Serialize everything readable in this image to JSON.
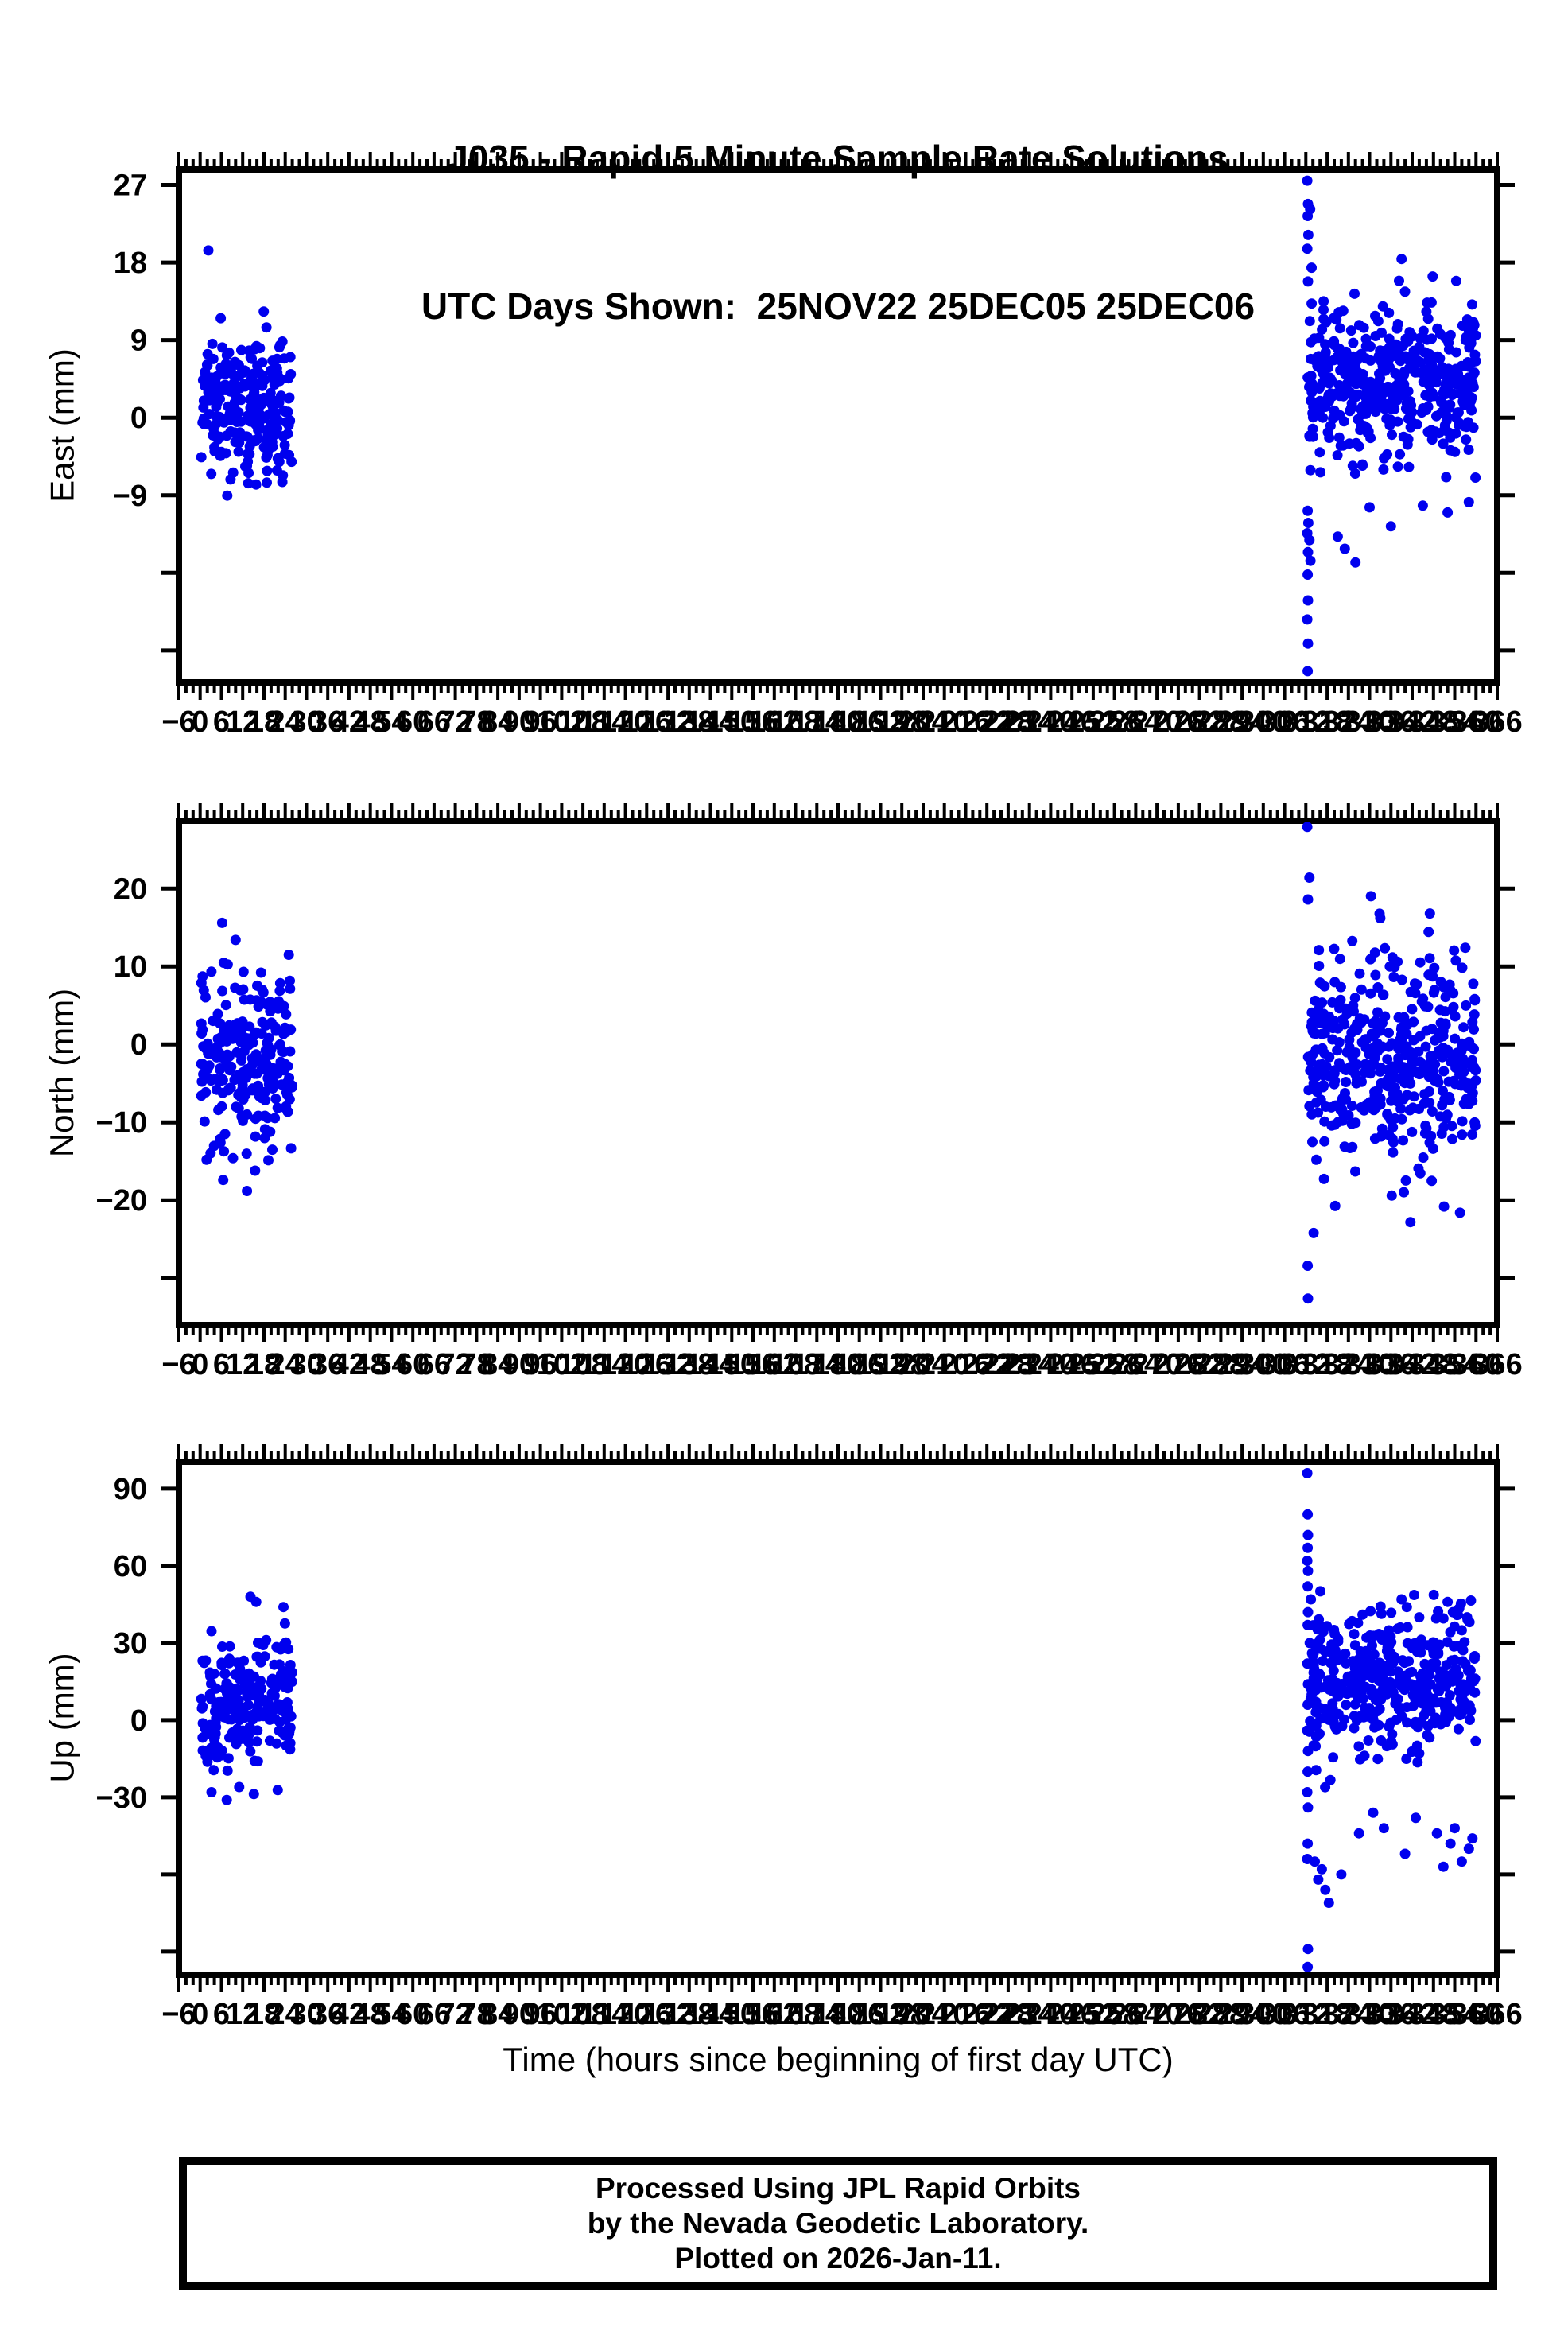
{
  "title": {
    "line1": "J035 - Rapid 5 Minute Sample Rate Solutions",
    "line2": "UTC Days Shown:  25NOV22 25DEC05 25DEC06"
  },
  "x_axis": {
    "title": "Time (hours since beginning of first day UTC)",
    "min": -6,
    "max": 366,
    "label_step": 6,
    "major_tick_step": 6,
    "minor_tick_step": 2,
    "day_hour_ranges": [
      [
        0,
        24
      ],
      [
        312,
        336
      ],
      [
        336,
        360
      ]
    ]
  },
  "footer": {
    "line1": "Processed Using JPL Rapid Orbits",
    "line2": "by the Nevada Geodetic Laboratory.",
    "line3": "Plotted on 2026-Jan-11."
  },
  "colors": {
    "point": "#0000ee",
    "axis": "#000000",
    "background": "#ffffff"
  },
  "chart_data": [
    {
      "name": "east",
      "type": "scatter",
      "ylabel": "East (mm)",
      "ylim": [
        -30.7,
        28.8
      ],
      "yticks_labeled": [
        27,
        18,
        9,
        0,
        -9
      ],
      "yticks_unlabeled": [
        -18,
        -27
      ],
      "clusters": [
        {
          "seed": 101,
          "x0": 0.3,
          "x1": 26.0,
          "n": 240,
          "mean": 1.5,
          "std": 3.9,
          "ymin": -11.5,
          "ymax": 13.0,
          "trend": 0
        },
        {
          "seed": 102,
          "x0": 312.5,
          "x1": 360.0,
          "n": 445,
          "mean": 4.0,
          "std": 4.4,
          "ymin": -17.0,
          "ymax": 16.5,
          "trend": 0
        }
      ],
      "outlier_points": [
        [
          2.3,
          19.4
        ],
        [
          312.4,
          27.5
        ],
        [
          312.6,
          24.8
        ],
        [
          313.2,
          24.2
        ],
        [
          312.5,
          23.4
        ],
        [
          312.7,
          21.2
        ],
        [
          312.4,
          19.6
        ],
        [
          313.6,
          17.4
        ],
        [
          312.6,
          15.8
        ],
        [
          317.0,
          13.5
        ],
        [
          339.0,
          18.4
        ],
        [
          312.5,
          -10.8
        ],
        [
          312.7,
          -12.2
        ],
        [
          312.4,
          -13.4
        ],
        [
          313.0,
          -14.2
        ],
        [
          312.6,
          -15.6
        ],
        [
          313.3,
          -16.6
        ],
        [
          312.5,
          -18.2
        ],
        [
          312.6,
          -21.2
        ],
        [
          312.4,
          -23.4
        ],
        [
          312.6,
          -26.2
        ],
        [
          312.5,
          -29.4
        ],
        [
          321.0,
          -13.8
        ],
        [
          323.0,
          -15.2
        ],
        [
          326.0,
          -16.8
        ],
        [
          330.0,
          -10.4
        ],
        [
          336.0,
          -12.6
        ],
        [
          345.0,
          -10.2
        ],
        [
          352.0,
          -11.0
        ],
        [
          358.0,
          -9.8
        ]
      ]
    },
    {
      "name": "north",
      "type": "scatter",
      "ylabel": "North (mm)",
      "ylim": [
        -36.0,
        28.7
      ],
      "yticks_labeled": [
        20,
        10,
        0,
        -10,
        -20
      ],
      "yticks_unlabeled": [
        -30
      ],
      "clusters": [
        {
          "seed": 201,
          "x0": 0.3,
          "x1": 26.0,
          "n": 240,
          "mean": -2.0,
          "std": 5.2,
          "ymin": -19.0,
          "ymax": 13.5,
          "trend": 0
        },
        {
          "seed": 202,
          "x0": 312.5,
          "x1": 360.0,
          "n": 445,
          "mean": -2.0,
          "std": 6.8,
          "ymin": -22.5,
          "ymax": 21.5,
          "trend": 0
        }
      ],
      "outlier_points": [
        [
          6.2,
          15.6
        ],
        [
          25.0,
          11.5
        ],
        [
          10.0,
          13.4
        ],
        [
          1.8,
          -14.8
        ],
        [
          6.5,
          -17.4
        ],
        [
          13.2,
          -18.8
        ],
        [
          15.5,
          -16.2
        ],
        [
          312.4,
          27.9
        ],
        [
          313.0,
          21.4
        ],
        [
          312.6,
          18.6
        ],
        [
          314.2,
          -24.2
        ],
        [
          312.5,
          -28.4
        ],
        [
          312.6,
          -32.6
        ],
        [
          341.5,
          -22.8
        ],
        [
          351.0,
          -20.8
        ],
        [
          355.5,
          -21.6
        ],
        [
          347.0,
          16.8
        ],
        [
          333.0,
          16.2
        ],
        [
          357.0,
          12.4
        ]
      ]
    },
    {
      "name": "up",
      "type": "scatter",
      "ylabel": "Up (mm)",
      "ylim": [
        -99.0,
        100.5
      ],
      "yticks_labeled": [
        90,
        60,
        30,
        0,
        -30
      ],
      "yticks_unlabeled": [
        -60,
        -90
      ],
      "clusters": [
        {
          "seed": 301,
          "x0": 0.3,
          "x1": 26.0,
          "n": 235,
          "mean": 6.0,
          "std": 12.0,
          "ymin": -31.0,
          "ymax": 44.0,
          "trend": 0.5
        },
        {
          "seed": 302,
          "x0": 313.0,
          "x1": 360.0,
          "n": 435,
          "mean": 15.0,
          "std": 14.0,
          "ymin": -38.0,
          "ymax": 52.0,
          "trend": 0
        }
      ],
      "outlier_points": [
        [
          14.2,
          48.0
        ],
        [
          15.8,
          46.0
        ],
        [
          23.5,
          44.0
        ],
        [
          3.2,
          -28.0
        ],
        [
          7.5,
          -31.0
        ],
        [
          11.0,
          -26.0
        ],
        [
          312.4,
          96.0
        ],
        [
          312.5,
          80.0
        ],
        [
          312.6,
          72.0
        ],
        [
          312.5,
          67.0
        ],
        [
          312.4,
          62.0
        ],
        [
          312.6,
          58.0
        ],
        [
          312.5,
          52.0
        ],
        [
          313.4,
          47.0
        ],
        [
          312.6,
          42.0
        ],
        [
          312.5,
          37.0
        ],
        [
          313.1,
          30.0
        ],
        [
          312.4,
          22.0
        ],
        [
          312.6,
          14.0
        ],
        [
          312.5,
          6.0
        ],
        [
          312.4,
          -4.0
        ],
        [
          312.6,
          -12.0
        ],
        [
          312.5,
          -20.0
        ],
        [
          312.4,
          -28.0
        ],
        [
          312.6,
          -34.0
        ],
        [
          312.5,
          -48.0
        ],
        [
          312.4,
          -54.0
        ],
        [
          312.6,
          -89.0
        ],
        [
          312.5,
          -96.0
        ],
        [
          314.5,
          -55.0
        ],
        [
          315.5,
          -62.0
        ],
        [
          316.5,
          -58.0
        ],
        [
          317.5,
          -66.0
        ],
        [
          318.5,
          -71.0
        ],
        [
          322.0,
          -60.0
        ],
        [
          340.0,
          -52.0
        ],
        [
          350.8,
          -57.0
        ],
        [
          352.8,
          -48.0
        ],
        [
          356.0,
          -55.0
        ],
        [
          358.0,
          -50.0
        ],
        [
          343.0,
          -38.0
        ],
        [
          334.0,
          -42.0
        ],
        [
          327.0,
          -44.0
        ],
        [
          349.0,
          -44.0
        ],
        [
          354.0,
          -42.0
        ],
        [
          359.0,
          -46.0
        ],
        [
          331.0,
          -36.0
        ],
        [
          339.0,
          47.0
        ],
        [
          340.5,
          44.0
        ],
        [
          352.0,
          46.0
        ],
        [
          353.5,
          42.0
        ],
        [
          357.5,
          40.0
        ],
        [
          344.0,
          40.0
        ]
      ]
    }
  ]
}
